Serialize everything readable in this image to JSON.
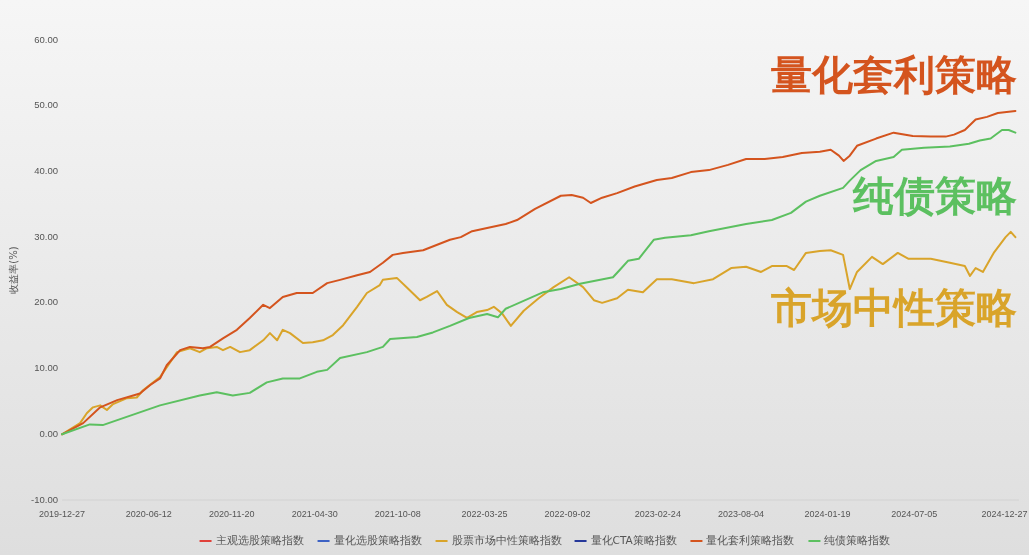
{
  "chart_data": {
    "type": "line",
    "ylabel": "收益率(%)",
    "legend": "bottom",
    "xlim": [
      "2019-12-27",
      "2025-01-24"
    ],
    "xticks": [
      "2019-12-27",
      "2020-06-12",
      "2020-11-20",
      "2021-04-30",
      "2021-10-08",
      "2022-03-25",
      "2022-09-02",
      "2023-02-24",
      "2023-08-04",
      "2024-01-19",
      "2024-07-05",
      "2024-12-27"
    ],
    "ylim": [
      -10,
      60
    ],
    "yticks": [
      {
        "value": -10,
        "label": "-10.00"
      },
      {
        "value": 0,
        "label": "0.00"
      },
      {
        "value": 10,
        "label": "10.00"
      },
      {
        "value": 20,
        "label": "20.00"
      },
      {
        "value": 30,
        "label": "30.00"
      },
      {
        "value": 40,
        "label": "40.00"
      },
      {
        "value": 50,
        "label": "50.00"
      },
      {
        "value": 60,
        "label": "60.00"
      }
    ],
    "annotations": [
      "量化套利策略",
      "纯债策略",
      "市场中性策略"
    ],
    "series": [
      {
        "name": "主观选股策略指数",
        "color": "#e0413a"
      },
      {
        "name": "量化选股策略指数",
        "color": "#3d62c4"
      },
      {
        "name": "股票市场中性策略指数",
        "color": "#d9a42a",
        "x": [
          "2019-12-27",
          "2020-01-31",
          "2020-02-13",
          "2020-02-25",
          "2020-03-10",
          "2020-03-23",
          "2020-04-04",
          "2020-05-01",
          "2020-05-20",
          "2020-06-01",
          "2020-07-04",
          "2020-08-06",
          "2020-08-31",
          "2020-09-19",
          "2020-10-03",
          "2020-10-22",
          "2020-11-03",
          "2020-11-17",
          "2020-12-06",
          "2020-12-25",
          "2021-01-20",
          "2021-02-02",
          "2021-02-16",
          "2021-02-27",
          "2021-03-13",
          "2021-04-07",
          "2021-04-26",
          "2021-05-16",
          "2021-06-04",
          "2021-06-24",
          "2021-07-21",
          "2021-08-09",
          "2021-09-03",
          "2021-09-09",
          "2021-10-06",
          "2021-10-26",
          "2021-11-20",
          "2021-12-03",
          "2021-12-23",
          "2022-01-11",
          "2022-01-31",
          "2022-02-19",
          "2022-03-10",
          "2022-03-30",
          "2022-04-12",
          "2022-04-28",
          "2022-05-15",
          "2022-06-09",
          "2022-07-08",
          "2022-08-06",
          "2022-09-05",
          "2022-10-02",
          "2022-10-23",
          "2022-11-08",
          "2022-12-07",
          "2022-12-28",
          "2023-01-26",
          "2023-02-22",
          "2023-03-23",
          "2023-05-05",
          "2023-06-11",
          "2023-07-16",
          "2023-08-14",
          "2023-09-12",
          "2023-10-03",
          "2023-11-01",
          "2023-11-15",
          "2023-12-08",
          "2024-01-04",
          "2024-01-25",
          "2024-02-18",
          "2024-03-02",
          "2024-03-16",
          "2024-04-14",
          "2024-05-05",
          "2024-06-03",
          "2024-06-24",
          "2024-08-06",
          "2024-09-12",
          "2024-10-11",
          "2024-10-21",
          "2024-11-01",
          "2024-11-15",
          "2024-12-06",
          "2024-12-29",
          "2025-01-08",
          "2025-01-17"
        ],
        "values": [
          0,
          1.7,
          3.2,
          4.1,
          4.4,
          3.7,
          4.6,
          5.5,
          5.6,
          6.7,
          8.7,
          12.5,
          13.1,
          12.5,
          13.1,
          13.3,
          12.8,
          13.3,
          12.5,
          12.8,
          14.3,
          15.4,
          14.3,
          15.9,
          15.4,
          13.9,
          14.0,
          14.3,
          15.1,
          16.6,
          19.4,
          21.5,
          22.7,
          23.5,
          23.8,
          22.3,
          20.4,
          20.9,
          21.8,
          19.7,
          18.6,
          17.7,
          18.6,
          18.9,
          19.4,
          18.4,
          16.5,
          18.8,
          20.7,
          22.4,
          23.9,
          22.4,
          20.4,
          20.0,
          20.7,
          22.0,
          21.6,
          23.6,
          23.6,
          23.0,
          23.6,
          25.3,
          25.5,
          24.7,
          25.6,
          25.6,
          25.0,
          27.6,
          27.9,
          28.0,
          27.3,
          22.1,
          24.7,
          27.0,
          25.9,
          27.6,
          26.7,
          26.7,
          26.1,
          25.6,
          24.1,
          25.3,
          24.7,
          27.6,
          30.0,
          30.8,
          30.0
        ]
      },
      {
        "name": "量化CTA策略指数",
        "color": "#26389a"
      },
      {
        "name": "量化套利策略指数",
        "color": "#d4541e",
        "x": [
          "2019-12-27",
          "2020-02-06",
          "2020-03-10",
          "2020-04-12",
          "2020-05-13",
          "2020-05-26",
          "2020-06-15",
          "2020-07-04",
          "2020-07-17",
          "2020-08-12",
          "2020-08-31",
          "2020-09-25",
          "2020-10-09",
          "2020-11-03",
          "2020-11-30",
          "2020-12-25",
          "2021-01-20",
          "2021-02-02",
          "2021-02-27",
          "2021-03-26",
          "2021-04-26",
          "2021-05-24",
          "2021-06-18",
          "2021-07-21",
          "2021-08-15",
          "2021-09-09",
          "2021-09-28",
          "2021-10-18",
          "2021-11-26",
          "2022-01-17",
          "2022-02-07",
          "2022-03-01",
          "2022-03-30",
          "2022-05-05",
          "2022-05-27",
          "2022-07-01",
          "2022-08-20",
          "2022-09-10",
          "2022-10-02",
          "2022-10-17",
          "2022-11-08",
          "2022-12-07",
          "2023-01-10",
          "2023-02-22",
          "2023-03-23",
          "2023-04-29",
          "2023-06-03",
          "2023-07-10",
          "2023-08-14",
          "2023-09-19",
          "2023-10-24",
          "2023-11-30",
          "2024-01-04",
          "2024-01-25",
          "2024-02-10",
          "2024-02-19",
          "2024-03-02",
          "2024-03-16",
          "2024-04-22",
          "2024-05-26",
          "2024-07-02",
          "2024-08-06",
          "2024-09-04",
          "2024-09-20",
          "2024-10-11",
          "2024-11-01",
          "2024-11-23",
          "2024-12-14",
          "2025-01-17"
        ],
        "values": [
          0,
          1.7,
          4.1,
          5.2,
          5.9,
          6.2,
          7.5,
          8.5,
          10.5,
          12.8,
          13.3,
          13.1,
          13.3,
          14.6,
          15.9,
          17.7,
          19.7,
          19.2,
          20.9,
          21.5,
          21.5,
          23.0,
          23.5,
          24.2,
          24.7,
          26.1,
          27.3,
          27.6,
          28.0,
          29.6,
          30.0,
          30.9,
          31.4,
          32.0,
          32.6,
          34.3,
          36.3,
          36.4,
          36.0,
          35.2,
          36.0,
          36.7,
          37.7,
          38.7,
          39.0,
          39.9,
          40.2,
          41.0,
          41.9,
          41.9,
          42.2,
          42.8,
          43.0,
          43.3,
          42.4,
          41.6,
          42.4,
          43.9,
          45.0,
          45.9,
          45.4,
          45.3,
          45.3,
          45.6,
          46.3,
          47.9,
          48.3,
          48.9,
          49.2
        ]
      },
      {
        "name": "纯债策略指数",
        "color": "#5cc060",
        "x": [
          "2019-12-27",
          "2020-02-19",
          "2020-03-15",
          "2020-07-04",
          "2020-09-19",
          "2020-10-22",
          "2020-11-22",
          "2020-12-25",
          "2021-01-27",
          "2021-02-27",
          "2021-04-01",
          "2021-05-04",
          "2021-05-24",
          "2021-06-18",
          "2021-08-09",
          "2021-09-09",
          "2021-09-23",
          "2021-11-14",
          "2021-12-15",
          "2022-01-17",
          "2022-02-23",
          "2022-03-30",
          "2022-04-20",
          "2022-05-05",
          "2022-07-16",
          "2022-08-20",
          "2022-09-26",
          "2022-11-29",
          "2022-12-12",
          "2022-12-28",
          "2023-01-18",
          "2023-02-16",
          "2023-03-10",
          "2023-04-29",
          "2023-06-03",
          "2023-08-14",
          "2023-10-03",
          "2023-11-09",
          "2023-12-08",
          "2024-01-04",
          "2024-02-18",
          "2024-03-02",
          "2024-03-23",
          "2024-04-22",
          "2024-05-26",
          "2024-06-11",
          "2024-07-24",
          "2024-09-12",
          "2024-10-19",
          "2024-11-09",
          "2024-11-30",
          "2024-12-22",
          "2025-01-04",
          "2025-01-17"
        ],
        "values": [
          0,
          1.5,
          1.4,
          4.4,
          5.9,
          6.4,
          5.9,
          6.3,
          7.9,
          8.5,
          8.5,
          9.5,
          9.8,
          11.6,
          12.5,
          13.3,
          14.5,
          14.8,
          15.5,
          16.5,
          17.7,
          18.3,
          17.8,
          19.1,
          21.6,
          22.1,
          22.9,
          23.9,
          25.0,
          26.4,
          26.7,
          29.6,
          29.9,
          30.3,
          30.9,
          32.0,
          32.6,
          33.7,
          35.4,
          36.3,
          37.5,
          38.6,
          40.2,
          41.6,
          42.2,
          43.3,
          43.6,
          43.8,
          44.2,
          44.7,
          45.0,
          46.3,
          46.3,
          45.9
        ]
      }
    ]
  }
}
